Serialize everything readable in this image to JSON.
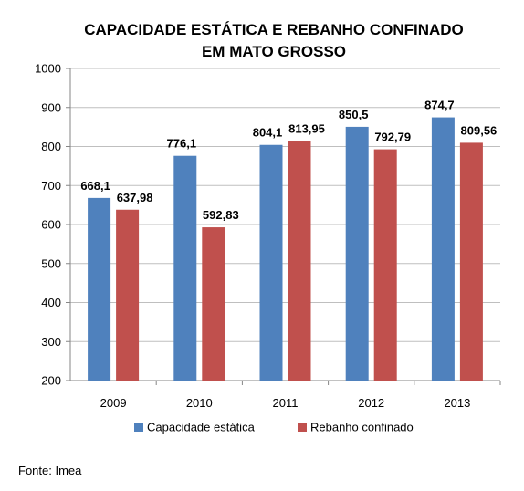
{
  "chart_data": {
    "type": "bar",
    "title_lines": [
      "CAPACIDADE ESTÁTICA E REBANHO CONFINADO",
      "EM MATO GROSSO"
    ],
    "categories": [
      "2009",
      "2010",
      "2011",
      "2012",
      "2013"
    ],
    "series": [
      {
        "name": "Capacidade estática",
        "color": "#4f81bd",
        "values": [
          668.1,
          776.1,
          804.1,
          850.5,
          874.7
        ],
        "labels": [
          "668,1",
          "776,1",
          "804,1",
          "850,5",
          "874,7"
        ]
      },
      {
        "name": "Rebanho confinado",
        "color": "#c0504d",
        "values": [
          637.98,
          592.83,
          813.95,
          792.79,
          809.56
        ],
        "labels": [
          "637,98",
          "592,83",
          "813,95",
          "792,79",
          "809,56"
        ]
      }
    ],
    "ylim": [
      200,
      1000
    ],
    "yticks": [
      "200",
      "300",
      "400",
      "500",
      "600",
      "700",
      "800",
      "900",
      "1000"
    ],
    "grid": true,
    "legend_position": "bottom"
  },
  "source": "Fonte: Imea"
}
